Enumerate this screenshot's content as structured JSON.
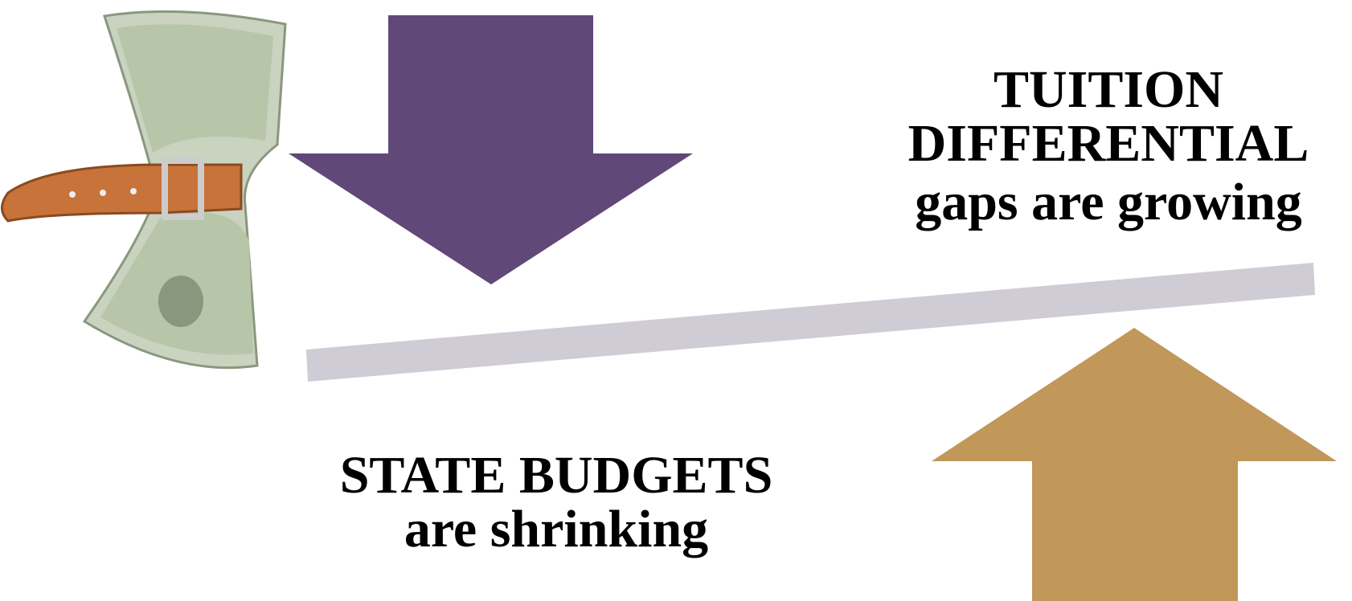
{
  "top_right": {
    "lines": [
      "TUITION",
      "DIFFERENTIAL",
      "gaps are growing"
    ]
  },
  "bottom_center": {
    "lines": [
      "STATE BUDGETS",
      "are shrinking"
    ]
  }
}
